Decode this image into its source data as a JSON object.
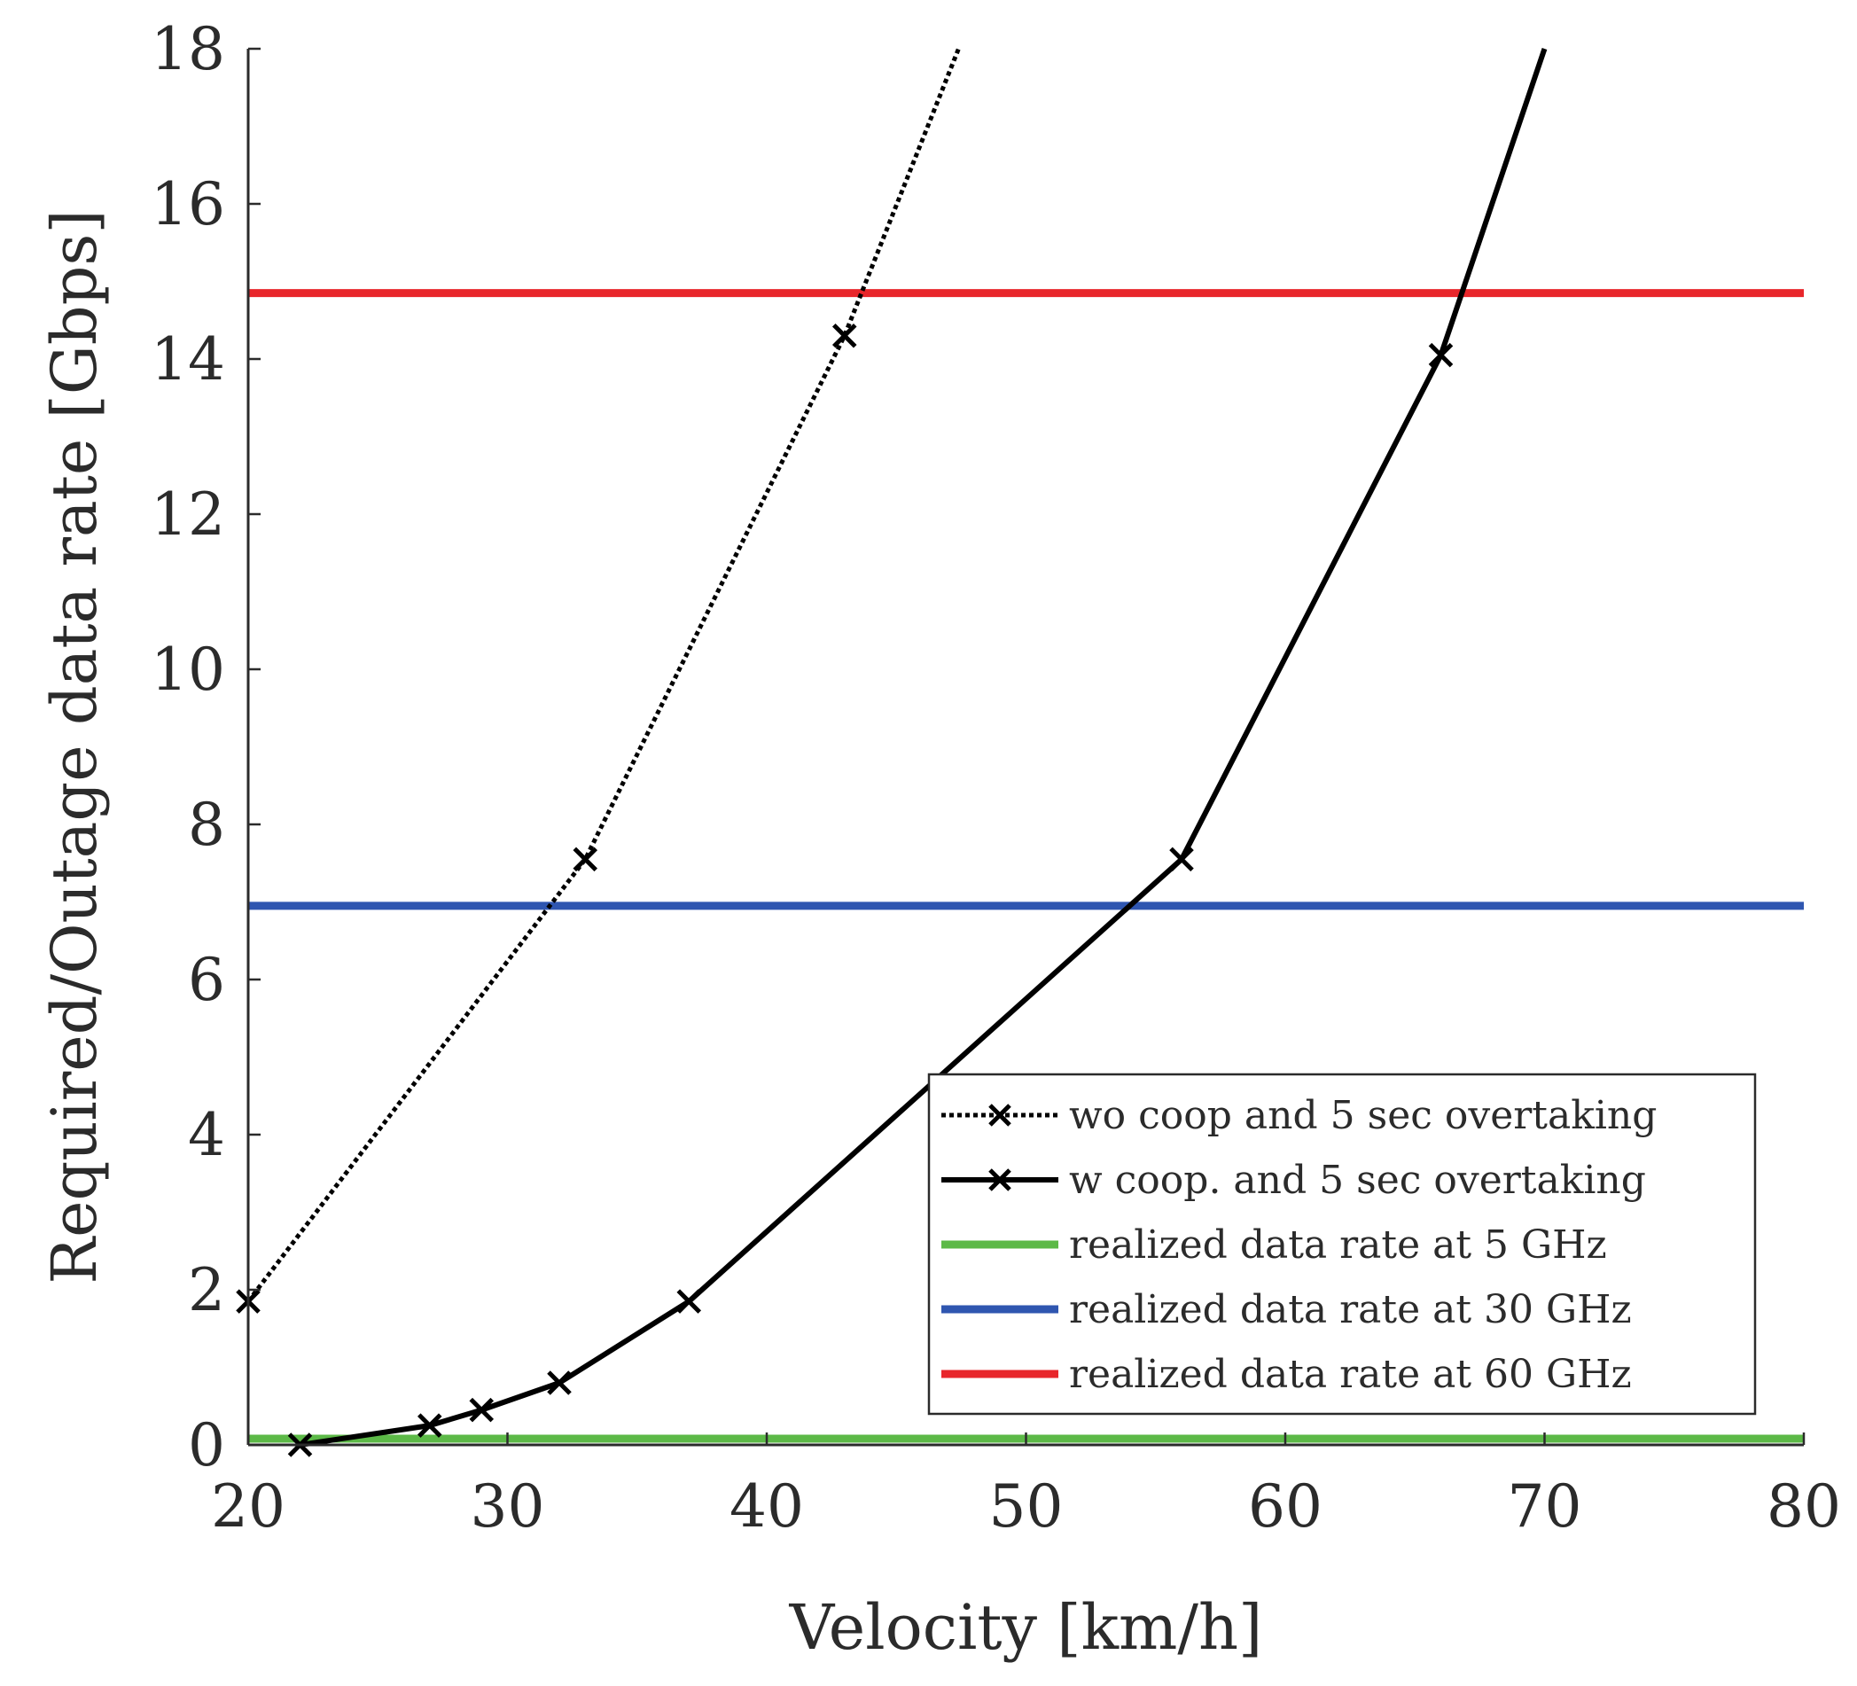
{
  "chart_data": {
    "type": "line",
    "title": "",
    "xlabel": "Velocity [km/h]",
    "ylabel": "Required/Outage data rate [Gbps]",
    "xlim": [
      20,
      80
    ],
    "ylim": [
      0,
      18
    ],
    "xticks": [
      20,
      30,
      40,
      50,
      60,
      70,
      80
    ],
    "yticks": [
      0,
      2,
      4,
      6,
      8,
      10,
      12,
      14,
      16,
      18
    ],
    "grid": false,
    "legend_position": "bottom-right",
    "series": [
      {
        "name": "wo coop and 5 sec overtaking",
        "color": "#000000",
        "style": "dotted",
        "marker": "x",
        "x": [
          20,
          33,
          43,
          47.4
        ],
        "y": [
          1.85,
          7.55,
          14.3,
          18
        ],
        "marker_x": [
          20,
          33,
          43
        ]
      },
      {
        "name": "w coop. and 5 sec overtaking",
        "color": "#000000",
        "style": "solid",
        "marker": "x",
        "x": [
          22,
          27,
          29,
          32,
          37,
          56,
          66,
          70
        ],
        "y": [
          0.0,
          0.25,
          0.45,
          0.8,
          1.85,
          7.55,
          14.05,
          18
        ],
        "marker_x": [
          22,
          27,
          29,
          32,
          37,
          56,
          66
        ]
      },
      {
        "name": "realized data rate at 5 GHz",
        "color": "#5cb947",
        "style": "solid",
        "marker": "none",
        "x": [
          20,
          80
        ],
        "y": [
          0.08,
          0.08
        ]
      },
      {
        "name": "realized data rate at 30 GHz",
        "color": "#2f56b0",
        "style": "solid",
        "marker": "none",
        "x": [
          20,
          80
        ],
        "y": [
          6.95,
          6.95
        ]
      },
      {
        "name": "realized data rate at 60 GHz",
        "color": "#e8262b",
        "style": "solid",
        "marker": "none",
        "x": [
          20,
          80
        ],
        "y": [
          14.85,
          14.85
        ]
      }
    ]
  }
}
